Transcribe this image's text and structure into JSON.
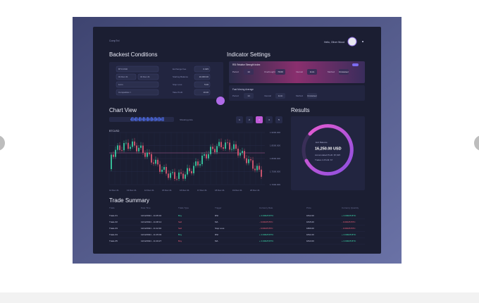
{
  "app": {
    "logo": "CompTrd",
    "greeting": "Hello, Oliver Wood"
  },
  "backtest": {
    "title": "Backest Conditions",
    "selects": [
      "BTC/USD",
      "01 Dec 21",
      "31 Dec 21",
      "1min",
      "Competition I"
    ],
    "fields": [
      {
        "label": "Exchange Fee",
        "value": "0.025"
      },
      {
        "label": "Starting Balance",
        "value": "10,000.00"
      },
      {
        "label": "Stop Loss",
        "value": "5.00"
      },
      {
        "label": "Take Profit",
        "value": "10.00"
      }
    ]
  },
  "indicators": {
    "title": "Indicator Settings",
    "rsi": {
      "name": "RSI Relative Strength Index",
      "params": [
        [
          "Period",
          "14"
        ],
        [
          "Overbought",
          "70.00"
        ],
        [
          "Interval",
          "1min"
        ],
        [
          "Method",
          "Crossover"
        ]
      ]
    },
    "ma": {
      "name": "Fast Moving Average",
      "params": [
        [
          "Period",
          "14"
        ],
        [
          "Interval",
          "1min"
        ],
        [
          "Method",
          "Crossover"
        ]
      ]
    }
  },
  "chart": {
    "title": "Chart View",
    "symbol": "BTCUSD",
    "zoom_label": "Showing price",
    "prices": [
      "1.9000.000",
      "1.8500.000",
      "1.8000.000",
      "1.7500.000",
      "1.7000.000"
    ],
    "dates": [
      "12 Dec 21",
      "13 Dec 21",
      "14 Dec 21",
      "15 Dec 21",
      "16 Dec 21",
      "17 Dec 21",
      "18 Dec 21",
      "19 Dec 21",
      "20 Dec 21"
    ],
    "pages": [
      "1",
      "2",
      "3",
      "4",
      "5"
    ]
  },
  "results": {
    "title": "Results",
    "label": "Exit Balance",
    "amount": "16,250.00 USD",
    "lines": [
      "Accumulated Profit: $7,625",
      "Trades in Profit: 67"
    ]
  },
  "trades": {
    "title": "Trade Summary",
    "columns": [
      "Trade",
      "Date Time",
      "Trade Type",
      "Trigger",
      "Currency Rate",
      "Price",
      "Currency Quantity"
    ],
    "rows": [
      [
        "Trade #1",
        "12/12/2021 - 11:05:32",
        "Buy",
        "RSI",
        "+ 0.00025 BTC",
        "1812.00",
        "+ 0.00025 BTC"
      ],
      [
        "Trade #2",
        "12/12/2021 - 11:08:14",
        "Sell",
        "MA",
        "- 0.00025 BTC",
        "1815.00",
        "- 0.00025 BTC"
      ],
      [
        "Trade #3",
        "12/12/2021 - 11:12:40",
        "Sell",
        "Stop Loss",
        "- 0.00025 BTC",
        "1809.00",
        "- 0.00025 BTC"
      ],
      [
        "Trade #4",
        "12/12/2021 - 11:15:03",
        "Buy",
        "RSI",
        "+ 0.00025 BTC",
        "1811.00",
        "+ 0.00025 BTC"
      ],
      [
        "Trade #5",
        "12/12/2021 - 11:19:27",
        "Buy",
        "MA",
        "+ 0.00025 BTC",
        "1813.00",
        "+ 0.00025 BTC"
      ]
    ]
  }
}
